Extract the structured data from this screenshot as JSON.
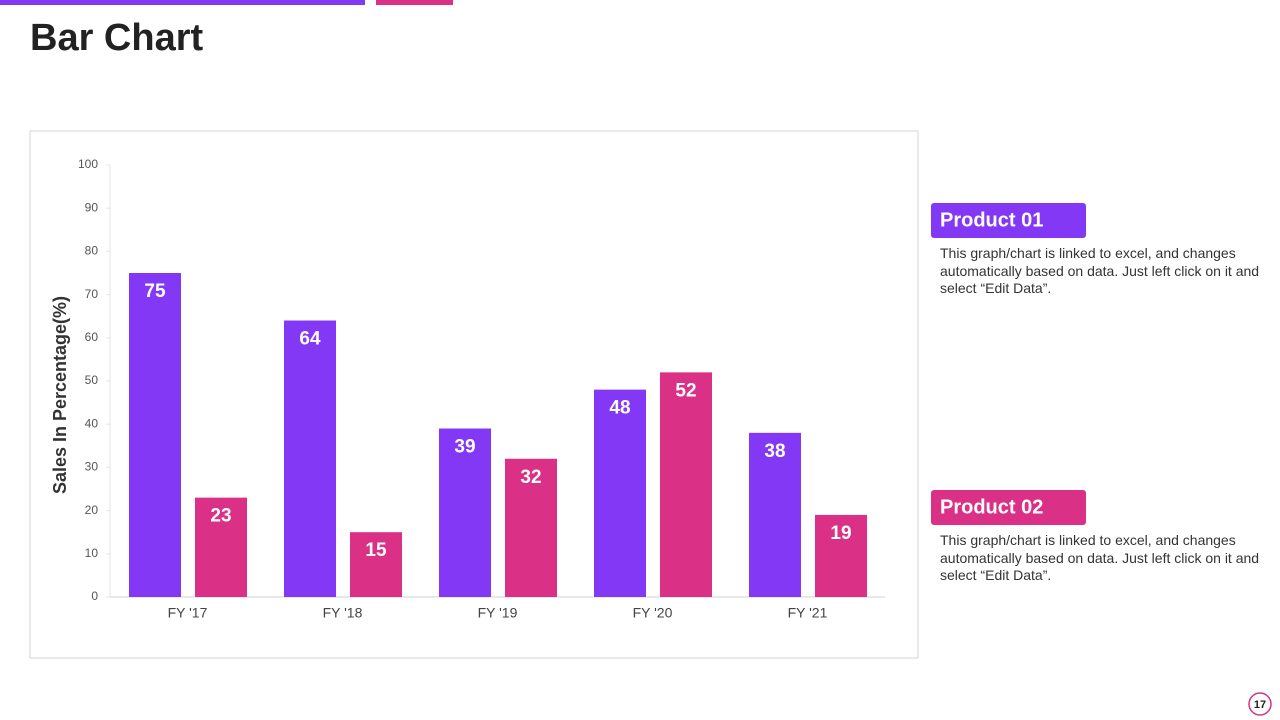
{
  "title": "Bar Chart",
  "page_number": 17,
  "chart_data": {
    "type": "bar",
    "y_label": "Sales In Percentage(%)",
    "categories": [
      "FY '17",
      "FY '18",
      "FY '19",
      "FY '20",
      "FY '21"
    ],
    "series": [
      {
        "name": "Product 01",
        "color": "#8338f5",
        "values": [
          75,
          64,
          39,
          48,
          38
        ],
        "description": "This graph/chart is linked to excel, and changes automatically based on data. Just left click on it and select “Edit Data”."
      },
      {
        "name": "Product 02",
        "color": "#da3187",
        "values": [
          23,
          15,
          32,
          52,
          19
        ],
        "description": "This graph/chart is linked to excel, and changes automatically based on data. Just left click on it and select “Edit Data”."
      }
    ],
    "ylim": [
      0,
      100
    ],
    "yticks": [
      0,
      10,
      20,
      30,
      40,
      50,
      60,
      70,
      80,
      90,
      100
    ]
  }
}
